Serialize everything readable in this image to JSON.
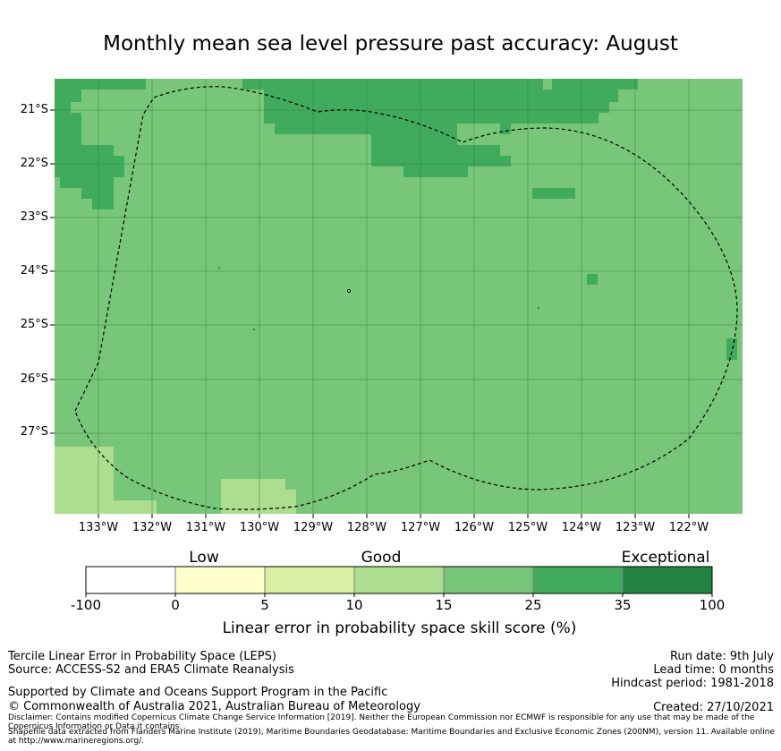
{
  "title": "Monthly mean sea level pressure past accuracy: August",
  "map": {
    "lat_labels": [
      "21°S",
      "22°S",
      "23°S",
      "24°S",
      "25°S",
      "26°S",
      "27°S"
    ],
    "lon_labels": [
      "133°W",
      "132°W",
      "131°W",
      "130°W",
      "129°W",
      "128°W",
      "127°W",
      "126°W",
      "125°W",
      "124°W",
      "123°W",
      "122°W"
    ],
    "zone_boundary_style": "dashed",
    "grid": true
  },
  "legend": {
    "categories": [
      "Low",
      "Good",
      "Exceptional"
    ],
    "ticks": [
      "-100",
      "0",
      "5",
      "10",
      "15",
      "25",
      "35",
      "100"
    ],
    "colors": [
      "#ffffff",
      "#ffffcc",
      "#d9f0a3",
      "#addd8e",
      "#78c679",
      "#41ab5d",
      "#238443"
    ],
    "title": "Linear error in probability space skill score (%)"
  },
  "footer": {
    "method": "Tercile Linear Error in Probability Space (LEPS)",
    "source": "Source: ACCESS-S2 and ERA5 Climate Reanalysis",
    "support": "Supported by Climate and Oceans Support Program in the Pacific",
    "copyright": "© Commonwealth of Australia 2021, Australian Bureau of Meteorology",
    "disclaimer": "Disclaimer: Contains modified Copernicus Climate Change Service Information [2019]. Neither the European Commission nor ECMWF is responsible for any use that may be made of the Copernicus Information or Data it contains.",
    "shapefile": "Shapefile data extracted from Flanders Marine Institute (2019), Maritime Boundaries Geodatabase: Maritime Boundaries and Exclusive Economic Zones (200NM), version 11. Available online at http://www.marineregions.org/.",
    "run_date": "Run date: 9th July",
    "lead_time": "Lead time: 0 months",
    "hindcast": "Hindcast period: 1981-2018",
    "created": "Created: 27/10/2021"
  }
}
